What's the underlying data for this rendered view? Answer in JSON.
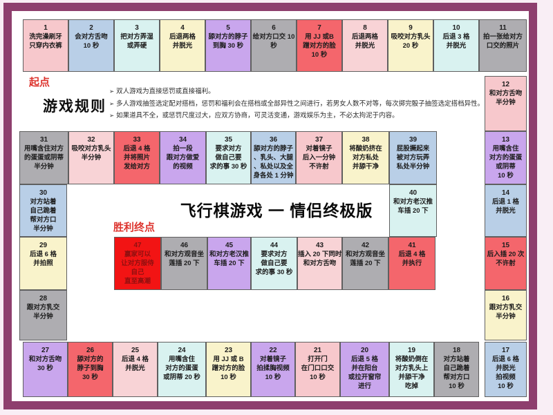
{
  "title": "飞行棋游戏 一 情侣终极版",
  "labels": {
    "start": "起点",
    "rules_heading": "游戏规则",
    "finish": "胜利终点",
    "rule_bullet": "➢"
  },
  "rules": [
    "双人游戏为直接惩罚或直接福利。",
    "多人游戏抽签选定配对搭档，惩罚和福利会在搭档或全部异性之间进行，若男女人数不对等，每次掷完骰子抽签选定搭档异性。",
    "如果道具不全，或惩罚尺度过大，应双方协商，可灵活变通，游戏娱乐为主，不必太拘泥于内容。"
  ],
  "palette": {
    "frame": "#8e3f6e",
    "accent_red": "#dd342e",
    "pink": "#f7c8cc",
    "blue": "#b9cfe7",
    "cyan": "#d9f2f0",
    "cream": "#f9f3cb",
    "purple": "#c9a6ed",
    "gray": "#aeadb1",
    "red": "#f4666c",
    "lightpink": "#f8d3d6",
    "brightred": "#f21414",
    "brightred_text": "#8f1010"
  },
  "cells": [
    {
      "num": 1,
      "color": "pink",
      "lines": [
        "洗完澡刷牙",
        "只穿内衣裤"
      ]
    },
    {
      "num": 2,
      "color": "blue",
      "lines": [
        "会对方舌吻",
        "10 秒"
      ]
    },
    {
      "num": 3,
      "color": "cyan",
      "lines": [
        "把对方弄湿",
        "或弄硬"
      ]
    },
    {
      "num": 4,
      "color": "cream",
      "lines": [
        "后退两格",
        "并脱光"
      ]
    },
    {
      "num": 5,
      "color": "purple",
      "lines": [
        "舔对方的脖子",
        "到胸 30 秒"
      ]
    },
    {
      "num": 6,
      "color": "gray",
      "lines": [
        "给对方口交 10",
        "秒"
      ]
    },
    {
      "num": 7,
      "color": "red",
      "lines": [
        "用 JJ 或B",
        "蹭对方的脸",
        "10 秒"
      ]
    },
    {
      "num": 8,
      "color": "lightpink",
      "lines": [
        "后退两格",
        "并脱光"
      ]
    },
    {
      "num": 9,
      "color": "cream",
      "lines": [
        "吸咬对方乳头",
        "20 秒"
      ]
    },
    {
      "num": 10,
      "color": "cyan",
      "lines": [
        "后退 3 格",
        "并脱光"
      ]
    },
    {
      "num": 11,
      "color": "gray",
      "lines": [
        "拍一张给对方",
        "口交的照片"
      ]
    },
    {
      "num": 12,
      "color": "pink",
      "lines": [
        "和对方舌吻",
        "半分钟"
      ]
    },
    {
      "num": 13,
      "color": "purple",
      "lines": [
        "用嘴含住",
        "对方的蛋蛋",
        "或阴蒂",
        "10 秒"
      ]
    },
    {
      "num": 14,
      "color": "blue",
      "lines": [
        "后退 1 格",
        "并脱光"
      ]
    },
    {
      "num": 15,
      "color": "red",
      "lines": [
        "后入插 20 次",
        "不许射"
      ]
    },
    {
      "num": 16,
      "color": "cream",
      "lines": [
        "跟对方乳交",
        "半分钟"
      ]
    },
    {
      "num": 17,
      "color": "blue",
      "lines": [
        "后退 6 格",
        "并脱光",
        "拍视频",
        "10 秒"
      ]
    },
    {
      "num": 18,
      "color": "gray",
      "lines": [
        "对方站着",
        "自己跪着",
        "帮对方口",
        "10 秒"
      ]
    },
    {
      "num": 19,
      "color": "cyan",
      "lines": [
        "将酸奶倒在",
        "对方乳头上",
        "并舔干净",
        "吃掉"
      ]
    },
    {
      "num": 20,
      "color": "purple",
      "lines": [
        "后退 5 格",
        "并在阳台",
        "或拉开窗帘",
        "进行"
      ]
    },
    {
      "num": 21,
      "color": "pink",
      "lines": [
        "打开门",
        "在门口口交",
        "10 秒"
      ]
    },
    {
      "num": 22,
      "color": "purple",
      "lines": [
        "对着镜子",
        "拍揉胸视频",
        "10 秒"
      ]
    },
    {
      "num": 23,
      "color": "cream",
      "lines": [
        "用 JJ 或 B",
        "蹭对方的脸",
        "10 秒"
      ]
    },
    {
      "num": 24,
      "color": "cyan",
      "lines": [
        "用嘴含住",
        "对方的蛋蛋",
        "或阴蒂 20 秒"
      ]
    },
    {
      "num": 25,
      "color": "lightpink",
      "lines": [
        "后退 4 格",
        "并脱光"
      ]
    },
    {
      "num": 26,
      "color": "red",
      "lines": [
        "舔对方的",
        "脖子到胸",
        "30 秒"
      ]
    },
    {
      "num": 27,
      "color": "purple",
      "lines": [
        "和对方舌吻",
        "30 秒"
      ]
    },
    {
      "num": 28,
      "color": "gray",
      "lines": [
        "跟对方乳交",
        "半分钟"
      ]
    },
    {
      "num": 29,
      "color": "cream",
      "lines": [
        "后退 6 格",
        "并拍照"
      ]
    },
    {
      "num": 30,
      "color": "blue",
      "lines": [
        "对方站着",
        "自己跪着",
        "帮对方口",
        "半分钟"
      ]
    },
    {
      "num": 31,
      "color": "gray",
      "lines": [
        "用嘴含住对方",
        "的蛋蛋或阴蒂",
        "半分钟"
      ]
    },
    {
      "num": 32,
      "color": "lightpink",
      "lines": [
        "吸咬对方乳头",
        "半分钟"
      ]
    },
    {
      "num": 33,
      "color": "red",
      "lines": [
        "后退 4 格",
        "并将照片",
        "发给对方"
      ]
    },
    {
      "num": 34,
      "color": "purple",
      "lines": [
        "拍一段",
        "跟对方做爱",
        "的视频"
      ]
    },
    {
      "num": 35,
      "color": "cyan",
      "lines": [
        "要求对方",
        "做自己要",
        "求的事 30 秒"
      ]
    },
    {
      "num": 36,
      "color": "blue",
      "lines": [
        "舔对方的脖子",
        "、乳头、大腿",
        "、私处以及全",
        "身各处 1 分钟"
      ]
    },
    {
      "num": 37,
      "color": "pink",
      "lines": [
        "对着镜子",
        "后入一分钟",
        "不许射"
      ]
    },
    {
      "num": 38,
      "color": "cream",
      "lines": [
        "将酸奶挤在",
        "对方私处",
        "并舔干净"
      ]
    },
    {
      "num": 39,
      "color": "blue",
      "lines": [
        "屁股撅起来",
        "被对方玩弄",
        "私处半分钟"
      ]
    },
    {
      "num": 40,
      "color": "cyan",
      "lines": [
        "和对方老汉推",
        "车插 20 下"
      ]
    },
    {
      "num": 41,
      "color": "red",
      "lines": [
        "后退 4 格",
        "并执行"
      ]
    },
    {
      "num": 42,
      "color": "gray",
      "lines": [
        "和对方观音坐",
        "莲插 20 下"
      ]
    },
    {
      "num": 43,
      "color": "lightpink",
      "lines": [
        "插入 20 下同时",
        "和对方舌吻"
      ]
    },
    {
      "num": 44,
      "color": "cyan",
      "lines": [
        "要求对方",
        "做自己要",
        "求的事 30 秒"
      ]
    },
    {
      "num": 45,
      "color": "purple",
      "lines": [
        "和对方老汉推",
        "车插 20 下"
      ]
    },
    {
      "num": 46,
      "color": "gray",
      "lines": [
        "和对方观音坐",
        "莲插 20 下"
      ]
    },
    {
      "num": 47,
      "color": "brightred",
      "lines": [
        "赢家可以",
        "让对方服侍",
        "自己",
        "直至高潮"
      ]
    }
  ]
}
